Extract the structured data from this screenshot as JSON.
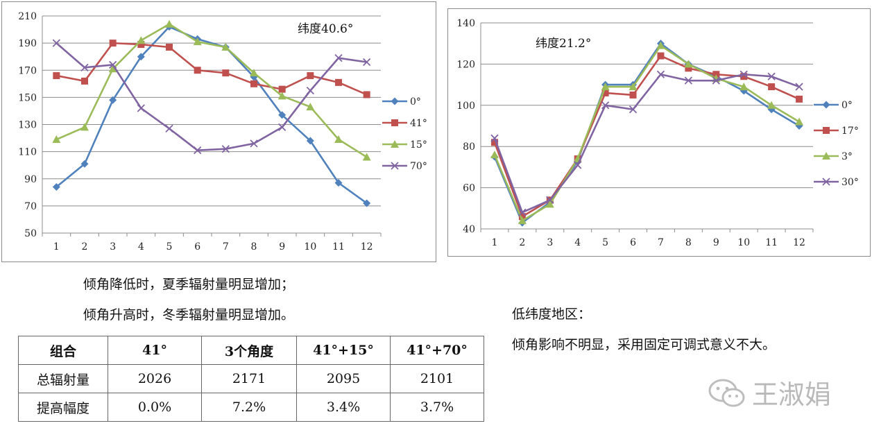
{
  "chart_data": [
    {
      "type": "line",
      "annotation": "纬度40.6°",
      "categories": [
        "1",
        "2",
        "3",
        "4",
        "5",
        "6",
        "7",
        "8",
        "9",
        "10",
        "11",
        "12"
      ],
      "y_ticks": [
        "50",
        "70",
        "90",
        "110",
        "130",
        "150",
        "170",
        "190",
        "210"
      ],
      "ylim": [
        50,
        210
      ],
      "grid": true,
      "legend_position": "right",
      "series": [
        {
          "name": "0°",
          "color": "#4f81bd",
          "marker": "diamond",
          "values": [
            84,
            101,
            148,
            180,
            202,
            193,
            187,
            165,
            137,
            118,
            87,
            72
          ]
        },
        {
          "name": "41°",
          "color": "#c0504d",
          "marker": "square",
          "values": [
            166,
            162,
            190,
            189,
            187,
            170,
            168,
            160,
            156,
            166,
            161,
            152
          ]
        },
        {
          "name": "15°",
          "color": "#9bbb59",
          "marker": "triangle",
          "values": [
            119,
            128,
            171,
            192,
            204,
            191,
            187,
            168,
            151,
            143,
            119,
            106
          ]
        },
        {
          "name": "70°",
          "color": "#8064a2",
          "marker": "x",
          "values": [
            190,
            172,
            174,
            142,
            127,
            111,
            112,
            116,
            128,
            155,
            179,
            176
          ]
        }
      ]
    },
    {
      "type": "line",
      "annotation": "纬度21.2°",
      "categories": [
        "1",
        "2",
        "3",
        "4",
        "5",
        "6",
        "7",
        "8",
        "9",
        "10",
        "11",
        "12"
      ],
      "y_ticks": [
        "40",
        "60",
        "80",
        "100",
        "120",
        "140"
      ],
      "ylim": [
        40,
        140
      ],
      "grid": true,
      "legend_position": "right",
      "series": [
        {
          "name": "0°",
          "color": "#4f81bd",
          "marker": "diamond",
          "values": [
            75,
            43,
            53,
            73,
            110,
            110,
            130,
            120,
            114,
            107,
            98,
            90
          ]
        },
        {
          "name": "17°",
          "color": "#c0504d",
          "marker": "square",
          "values": [
            82,
            46,
            54,
            74,
            106,
            105,
            124,
            118,
            115,
            114,
            109,
            103
          ]
        },
        {
          "name": "3°",
          "color": "#9bbb59",
          "marker": "triangle",
          "values": [
            76,
            44,
            52,
            74,
            109,
            109,
            129,
            120,
            113,
            109,
            100,
            92
          ]
        },
        {
          "name": "30°",
          "color": "#8064a2",
          "marker": "x",
          "values": [
            84,
            48,
            54,
            71,
            100,
            98,
            115,
            112,
            112,
            115,
            114,
            109
          ]
        }
      ]
    }
  ],
  "notes": {
    "line1": "倾角降低时，夏季辐射量明显增加；",
    "line2": "倾角升高时，冬季辐射量明显增加。",
    "low_lat_title": "低纬度地区：",
    "low_lat_text": "倾角影响不明显，采用固定可调式意义不大。"
  },
  "table": {
    "header": [
      "组合",
      "41°",
      "3个角度",
      "41°+15°",
      "41°+70°"
    ],
    "rows": [
      [
        "总辐射量",
        "2026",
        "2171",
        "2095",
        "2101"
      ],
      [
        "提高幅度",
        "0.0%",
        "7.2%",
        "3.4%",
        "3.7%"
      ]
    ]
  },
  "watermark": {
    "text": "王淑娟",
    "icon": "wechat-icon"
  }
}
